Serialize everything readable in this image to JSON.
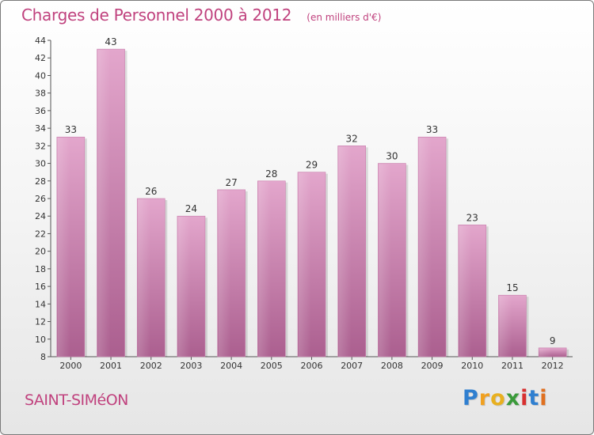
{
  "header": {
    "title": "Charges de Personnel 2000 à 2012",
    "subtitle": "(en milliers d'€)"
  },
  "commune": "SAINT-SIMéON",
  "logo": {
    "text": "Proxiti",
    "letters": [
      "P",
      "r",
      "o",
      "x",
      "i",
      "t",
      "i"
    ],
    "colors": [
      "#2f7fd0",
      "#f0a020",
      "#e8b020",
      "#3a9a3a",
      "#d83030",
      "#2f7fd0",
      "#e07020"
    ]
  },
  "chart_data": {
    "type": "bar",
    "categories": [
      "2000",
      "2001",
      "2002",
      "2003",
      "2004",
      "2005",
      "2006",
      "2007",
      "2008",
      "2009",
      "2010",
      "2011",
      "2012"
    ],
    "values": [
      33,
      43,
      26,
      24,
      27,
      28,
      29,
      32,
      30,
      33,
      23,
      15,
      9
    ],
    "ylim": [
      8,
      44
    ],
    "yticks": [
      8,
      10,
      12,
      14,
      16,
      18,
      20,
      22,
      24,
      26,
      28,
      30,
      32,
      34,
      36,
      38,
      40,
      42,
      44
    ],
    "grid": false,
    "bar_color": "#d88cb8",
    "bar_color_dark": "#b06094"
  }
}
